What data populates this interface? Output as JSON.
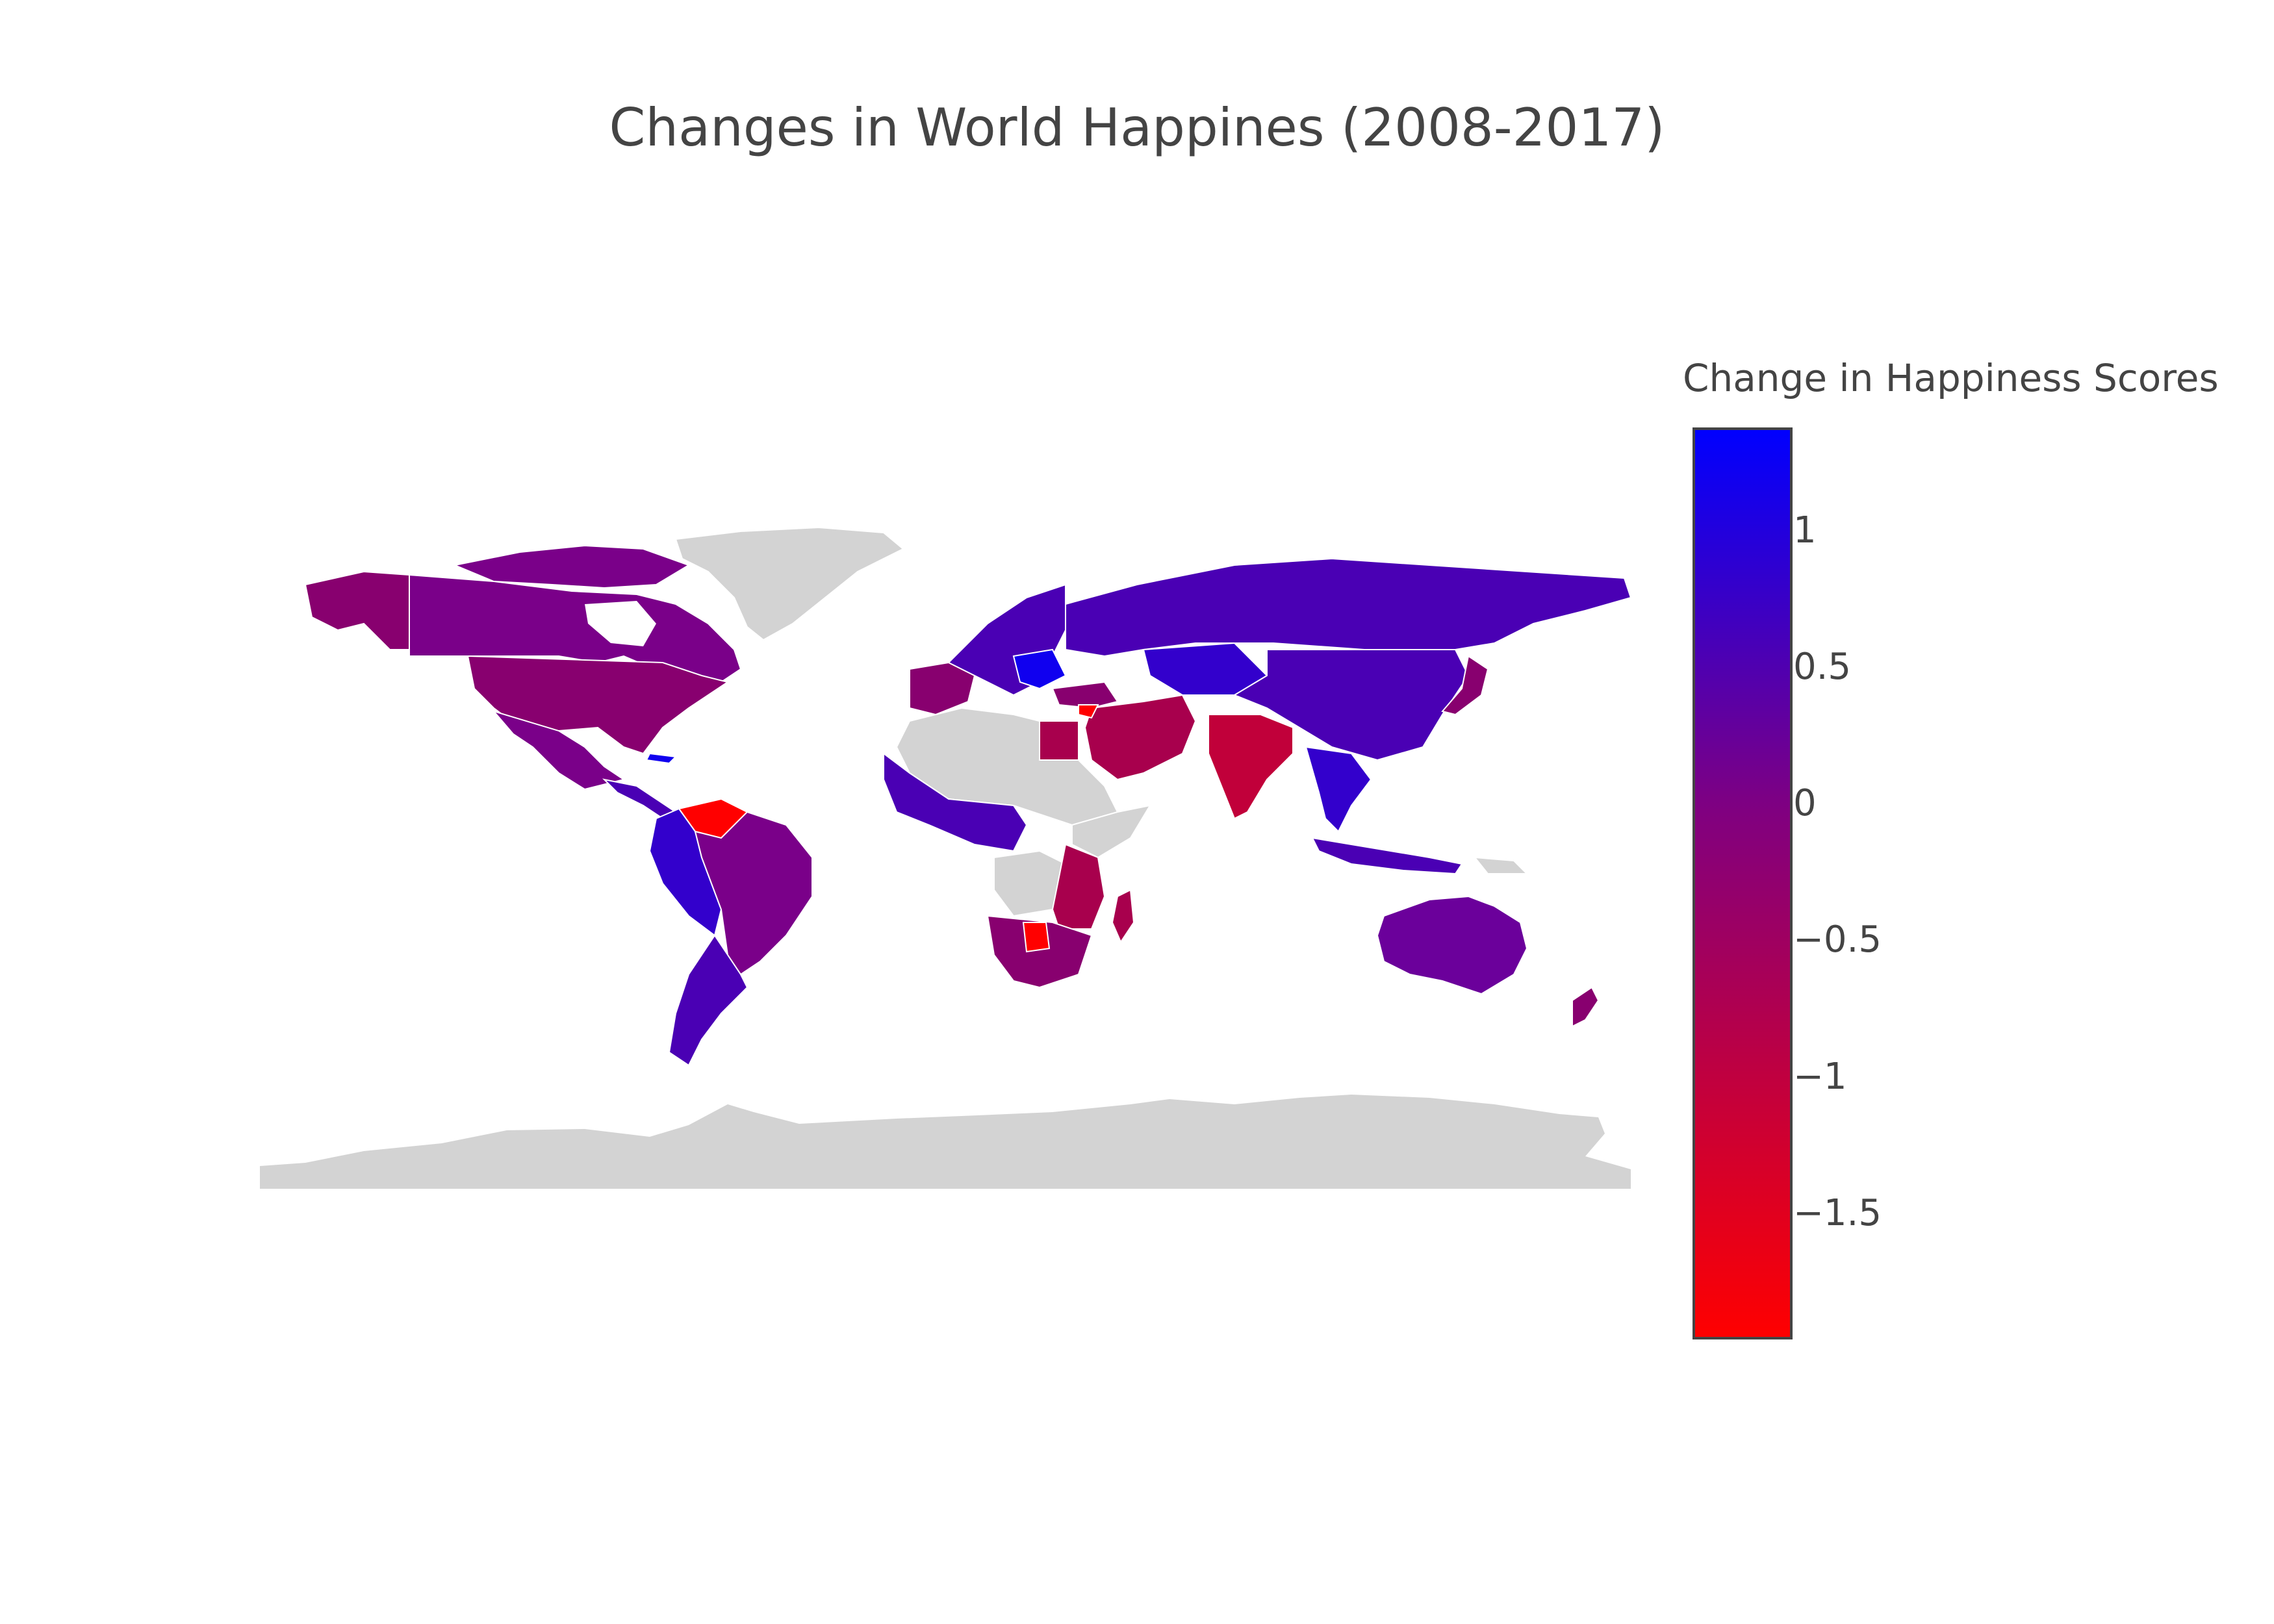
{
  "title": "Changes in World Happines (2008-2017)",
  "colorbar": {
    "title": "Change in Happiness Scores",
    "min": -1.95,
    "max": 1.38,
    "ticks": [
      {
        "value": 1,
        "label": "1"
      },
      {
        "value": 0.5,
        "label": "0.5"
      },
      {
        "value": 0,
        "label": "0"
      },
      {
        "value": -0.5,
        "label": "−0.5"
      },
      {
        "value": -1,
        "label": "−1"
      },
      {
        "value": -1.5,
        "label": "−1.5"
      }
    ],
    "color_low": "#ff0000",
    "color_high": "#0000ff"
  },
  "colors": {
    "no_data": "#d3d3d3",
    "country_border": "#ffffff",
    "text": "#444444"
  }
}
